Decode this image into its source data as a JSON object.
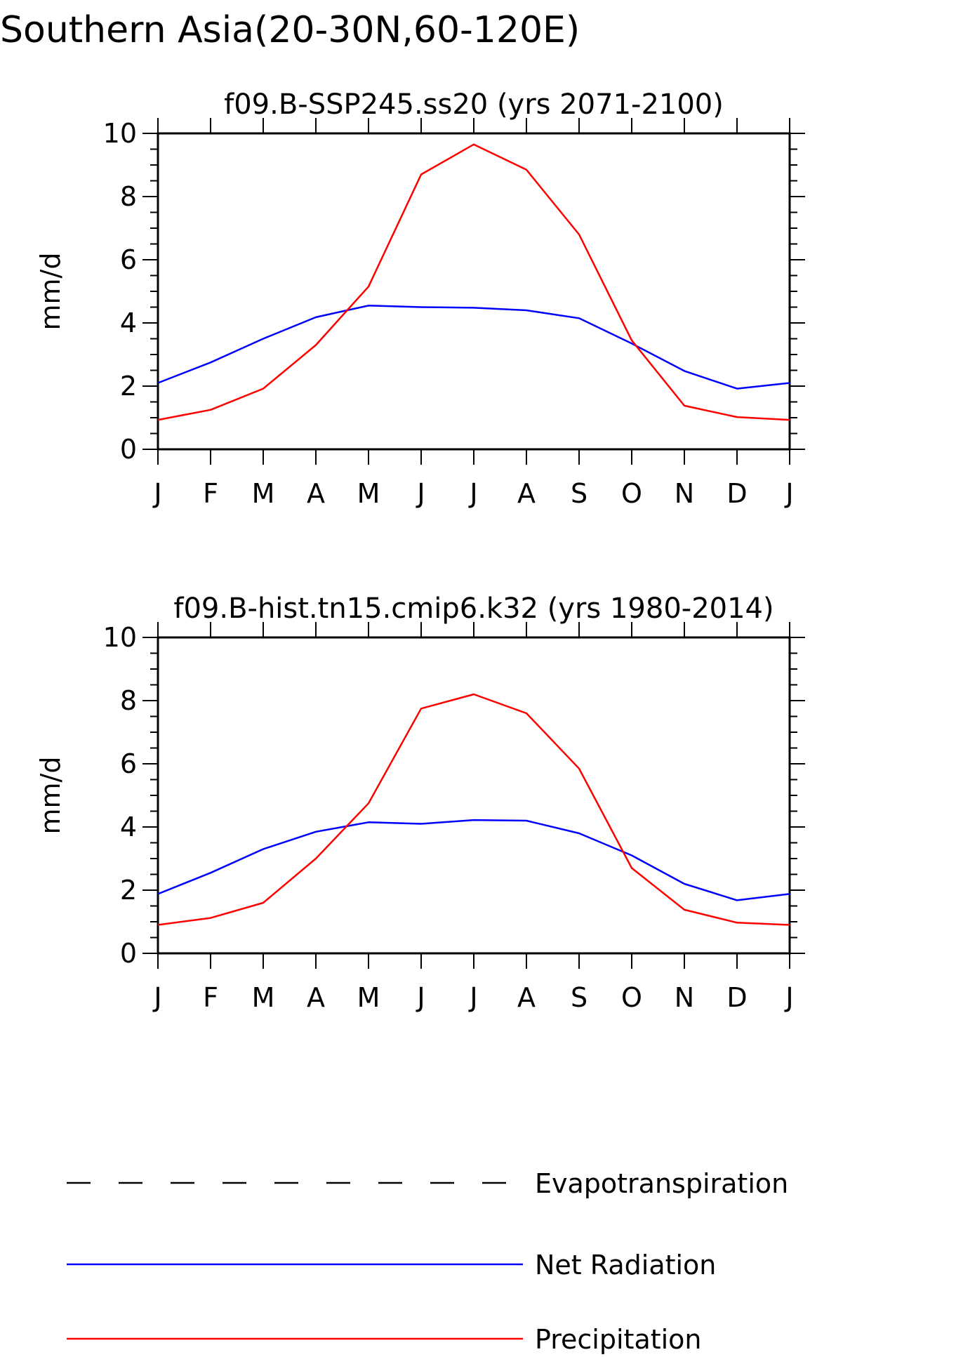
{
  "main_title": "Southern Asia(20-30N,60-120E)",
  "colors": {
    "evapotranspiration": "#000000",
    "net_radiation": "#0000ff",
    "precipitation": "#ff0000"
  },
  "legend": [
    {
      "label": "Evapotranspiration",
      "color": "#000000",
      "style": "dashed"
    },
    {
      "label": "Net Radiation",
      "color": "#0000ff",
      "style": "solid"
    },
    {
      "label": "Precipitation",
      "color": "#ff0000",
      "style": "solid"
    }
  ],
  "chart_data": [
    {
      "type": "line",
      "title": "f09.B-SSP245.ss20 (yrs 2071-2100)",
      "ylabel": "mm/d",
      "ylim": [
        0,
        10
      ],
      "yticks": [
        "0",
        "2",
        "4",
        "6",
        "8",
        "10"
      ],
      "categories": [
        "J",
        "F",
        "M",
        "A",
        "M",
        "J",
        "J",
        "A",
        "S",
        "O",
        "N",
        "D",
        "J"
      ],
      "series": [
        {
          "name": "Net Radiation",
          "color": "#0000ff",
          "values": [
            2.1,
            2.75,
            3.5,
            4.18,
            4.55,
            4.5,
            4.48,
            4.4,
            4.15,
            3.35,
            2.48,
            1.92,
            2.1
          ]
        },
        {
          "name": "Precipitation",
          "color": "#ff0000",
          "values": [
            0.93,
            1.25,
            1.92,
            3.3,
            5.15,
            8.7,
            9.65,
            8.85,
            6.8,
            3.45,
            1.38,
            1.02,
            0.93
          ]
        }
      ]
    },
    {
      "type": "line",
      "title": "f09.B-hist.tn15.cmip6.k32 (yrs 1980-2014)",
      "ylabel": "mm/d",
      "ylim": [
        0,
        10
      ],
      "yticks": [
        "0",
        "2",
        "4",
        "6",
        "8",
        "10"
      ],
      "categories": [
        "J",
        "F",
        "M",
        "A",
        "M",
        "J",
        "J",
        "A",
        "S",
        "O",
        "N",
        "D",
        "J"
      ],
      "series": [
        {
          "name": "Net Radiation",
          "color": "#0000ff",
          "values": [
            1.88,
            2.55,
            3.3,
            3.85,
            4.15,
            4.1,
            4.22,
            4.2,
            3.8,
            3.1,
            2.2,
            1.68,
            1.88
          ]
        },
        {
          "name": "Precipitation",
          "color": "#ff0000",
          "values": [
            0.9,
            1.12,
            1.6,
            3.0,
            4.75,
            7.75,
            8.2,
            7.6,
            5.85,
            2.7,
            1.38,
            0.97,
            0.9
          ]
        }
      ]
    }
  ]
}
